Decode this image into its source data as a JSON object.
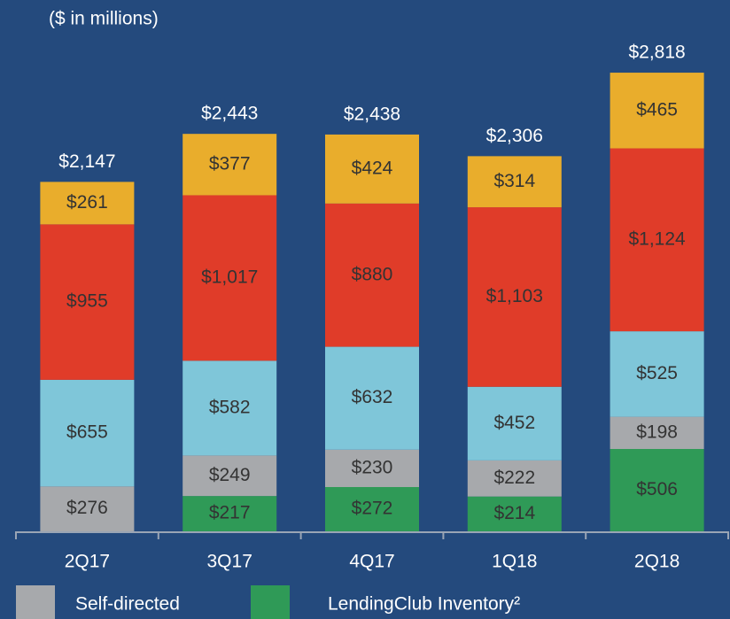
{
  "chart_data": {
    "type": "stacked_bar",
    "subtitle": "($ in millions)",
    "categories": [
      "2Q17",
      "3Q17",
      "4Q17",
      "1Q18",
      "2Q18"
    ],
    "series": [
      {
        "name": "LendingClub Inventory²",
        "color": "#2f9a57",
        "values": [
          null,
          217,
          272,
          214,
          506
        ],
        "value_labels": [
          null,
          "$217",
          "$272",
          "$214",
          "$506"
        ]
      },
      {
        "name": "Self-directed",
        "color": "#a7a9ac",
        "values": [
          276,
          249,
          230,
          222,
          198
        ],
        "value_labels": [
          "$276",
          "$249",
          "$230",
          "$222",
          "$198"
        ]
      },
      {
        "color": "#7fc6d9",
        "values": [
          655,
          582,
          632,
          452,
          525
        ],
        "value_labels": [
          "$655",
          "$582",
          "$632",
          "$452",
          "$525"
        ]
      },
      {
        "color": "#e03c29",
        "values": [
          955,
          1017,
          880,
          1103,
          1124
        ],
        "value_labels": [
          "$955",
          "$1,017",
          "$880",
          "$1,103",
          "$1,124"
        ]
      },
      {
        "color": "#e9ad2c",
        "values": [
          261,
          377,
          424,
          314,
          465
        ],
        "value_labels": [
          "$261",
          "$377",
          "$424",
          "$314",
          "$465"
        ]
      }
    ],
    "totals": [
      2147,
      2443,
      2438,
      2306,
      2818
    ],
    "total_labels": [
      "$2,147",
      "$2,443",
      "$2,438",
      "$2,306",
      "$2,818"
    ],
    "ylim": [
      0,
      2900
    ]
  }
}
